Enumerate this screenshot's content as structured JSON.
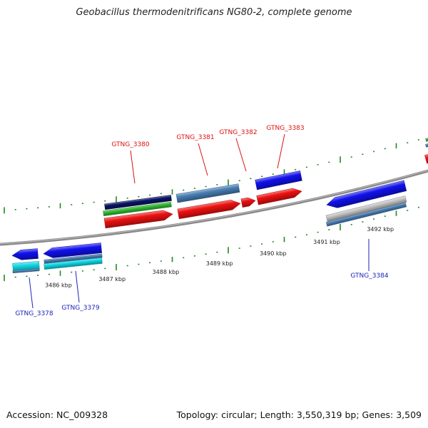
{
  "title": "Geobacillus thermodenitrificans NG80-2, complete genome",
  "footer": {
    "accession": "Accession: NC_009328",
    "topology": "Topology: circular; Length: 3,550,319 bp; Genes: 3,509"
  },
  "colors": {
    "forward_label": "#dd1111",
    "reverse_label": "#1a22bb",
    "backbone": "#888888",
    "tick": "#228822",
    "cds_red": "#ee1111",
    "cds_blue": "#1111ee",
    "steel_blue": "#4a7fb5",
    "navy": "#0b1466",
    "green": "#33bb33",
    "cyan": "#11d7e4",
    "silver": "#c4c4c4"
  },
  "scale": {
    "unit": "kbp",
    "ticks": [
      {
        "kbp": 3486,
        "label": "3486 kbp"
      },
      {
        "kbp": 3487,
        "label": "3487 kbp"
      },
      {
        "kbp": 3488,
        "label": "3488 kbp"
      },
      {
        "kbp": 3489,
        "label": "3489 kbp"
      },
      {
        "kbp": 3490,
        "label": "3490 kbp"
      },
      {
        "kbp": 3491,
        "label": "3491 kbp"
      },
      {
        "kbp": 3492,
        "label": "3492 kbp"
      }
    ]
  },
  "gene_labels": [
    {
      "id": "GTNG_3378",
      "strand": "reverse"
    },
    {
      "id": "GTNG_3379",
      "strand": "reverse"
    },
    {
      "id": "GTNG_3380",
      "strand": "forward"
    },
    {
      "id": "GTNG_3381",
      "strand": "forward"
    },
    {
      "id": "GTNG_3382",
      "strand": "forward"
    },
    {
      "id": "GTNG_3383",
      "strand": "forward"
    },
    {
      "id": "GTNG_3384",
      "strand": "reverse"
    }
  ]
}
